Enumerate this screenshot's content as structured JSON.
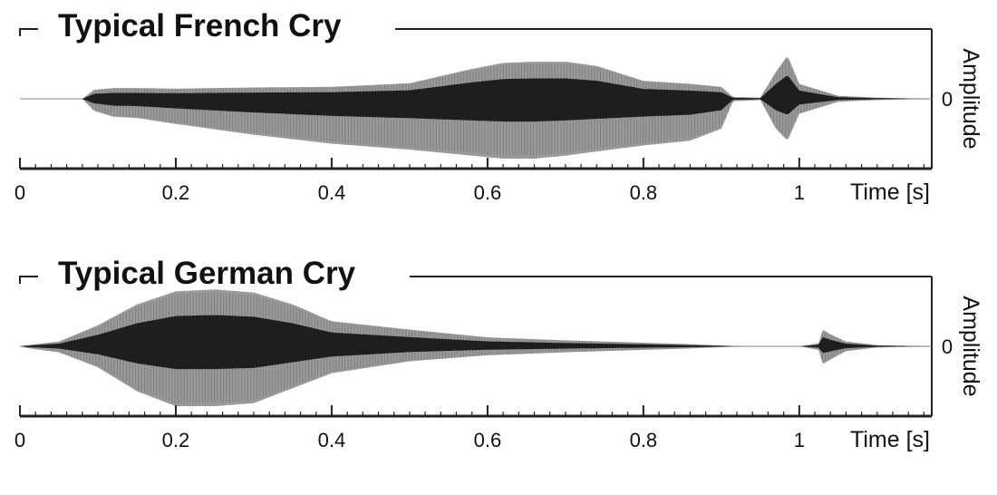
{
  "chart_data": [
    {
      "type": "line",
      "title": "Typical French Cry",
      "xlabel": "Time [s]",
      "ylabel": "Amplitude",
      "xlim": [
        0,
        1.17
      ],
      "x_ticks": [
        0,
        0.2,
        0.4,
        0.6,
        0.8,
        1
      ],
      "tick_labels": [
        "0",
        "0.2",
        "0.4",
        "0.6",
        "0.8",
        "1"
      ],
      "y_tick_label": "0",
      "colors": {
        "envelope": "#9a9a9a",
        "core": "#1e1e1e",
        "axis": "#222222"
      },
      "envelope": {
        "time": [
          0.0,
          0.08,
          0.095,
          0.12,
          0.15,
          0.2,
          0.3,
          0.4,
          0.5,
          0.58,
          0.62,
          0.66,
          0.7,
          0.74,
          0.8,
          0.86,
          0.9,
          0.915,
          0.95,
          0.97,
          0.985,
          1.0,
          1.05,
          1.1,
          1.17
        ],
        "upper": [
          0.0,
          0.0,
          0.15,
          0.18,
          0.18,
          0.17,
          0.19,
          0.2,
          0.26,
          0.5,
          0.6,
          0.62,
          0.62,
          0.55,
          0.3,
          0.25,
          0.2,
          0.03,
          0.02,
          0.45,
          0.72,
          0.25,
          0.05,
          0.02,
          0.0
        ],
        "lower": [
          0.0,
          0.0,
          -0.2,
          -0.3,
          -0.32,
          -0.42,
          -0.6,
          -0.75,
          -0.85,
          -0.95,
          -1.0,
          -1.0,
          -0.95,
          -0.88,
          -0.78,
          -0.7,
          -0.5,
          -0.04,
          -0.02,
          -0.5,
          -0.7,
          -0.25,
          -0.05,
          -0.02,
          0.0
        ]
      }
    },
    {
      "type": "line",
      "title": "Typical German Cry",
      "xlabel": "Time [s]",
      "ylabel": "Amplitude",
      "xlim": [
        0,
        1.17
      ],
      "x_ticks": [
        0,
        0.2,
        0.4,
        0.6,
        0.8,
        1
      ],
      "tick_labels": [
        "0",
        "0.2",
        "0.4",
        "0.6",
        "0.8",
        "1"
      ],
      "y_tick_label": "0",
      "colors": {
        "envelope": "#9a9a9a",
        "core": "#1e1e1e",
        "axis": "#222222"
      },
      "envelope": {
        "time": [
          0.0,
          0.01,
          0.05,
          0.1,
          0.15,
          0.2,
          0.25,
          0.3,
          0.35,
          0.4,
          0.5,
          0.6,
          0.7,
          0.8,
          0.85,
          0.93,
          1.0,
          1.025,
          1.03,
          1.04,
          1.06,
          1.1,
          1.17
        ],
        "upper": [
          0.0,
          0.02,
          0.08,
          0.35,
          0.7,
          0.92,
          0.95,
          0.9,
          0.7,
          0.42,
          0.28,
          0.15,
          0.1,
          0.06,
          0.04,
          0.0,
          0.0,
          0.05,
          0.28,
          0.2,
          0.08,
          0.02,
          0.0
        ],
        "lower": [
          0.0,
          -0.03,
          -0.1,
          -0.35,
          -0.75,
          -1.0,
          -1.0,
          -0.95,
          -0.7,
          -0.45,
          -0.25,
          -0.15,
          -0.1,
          -0.06,
          -0.04,
          0.0,
          0.0,
          -0.06,
          -0.3,
          -0.22,
          -0.08,
          -0.02,
          0.0
        ]
      }
    }
  ]
}
